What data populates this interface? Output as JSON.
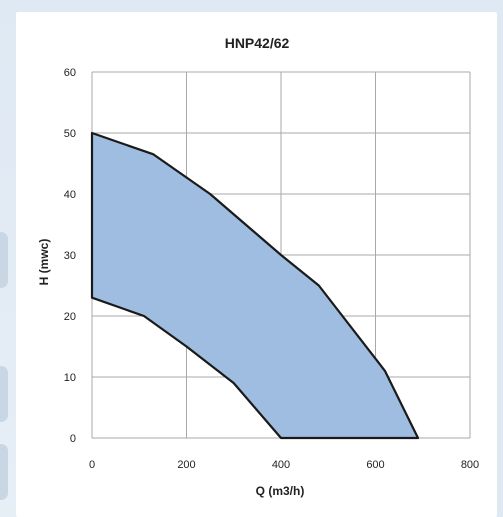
{
  "chart_data": {
    "type": "area",
    "title": "HNP42/62",
    "xlabel": "Q (m3/h)",
    "ylabel": "H (mwc)",
    "xlim": [
      0,
      800
    ],
    "ylim": [
      0,
      60
    ],
    "xticks": [
      0,
      200,
      400,
      600,
      800
    ],
    "yticks": [
      0,
      10,
      20,
      30,
      40,
      50,
      60
    ],
    "grid": true,
    "fill_color": "#9fbde0",
    "line_color": "#1a1a1a",
    "region": {
      "upper": [
        [
          0,
          50
        ],
        [
          130,
          46.5
        ],
        [
          250,
          40
        ],
        [
          400,
          30
        ],
        [
          480,
          25
        ],
        [
          620,
          11
        ],
        [
          690,
          0
        ]
      ],
      "lower": [
        [
          0,
          23
        ],
        [
          110,
          20
        ],
        [
          200,
          15
        ],
        [
          300,
          9
        ],
        [
          400,
          0
        ]
      ]
    }
  }
}
